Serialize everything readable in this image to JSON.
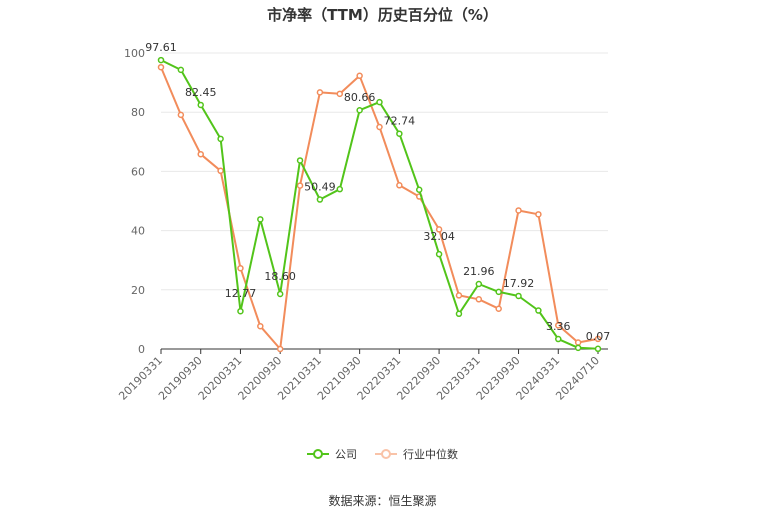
{
  "chart_data": {
    "type": "line",
    "title": "市净率（TTM）历史百分位（%）",
    "source": "数据来源：恒生聚源",
    "ylim": [
      0,
      100
    ],
    "yticks": [
      0,
      20,
      40,
      60,
      80,
      100
    ],
    "x_labels": [
      "20190331",
      "20190930",
      "20200331",
      "20200930",
      "20210331",
      "20210930",
      "20220331",
      "20220930",
      "20230331",
      "20230930",
      "20240331",
      "20240710"
    ],
    "grid": true,
    "legend_position": "bottom",
    "series": [
      {
        "name": "公司",
        "color": "#52c41a",
        "values": [
          97.61,
          94.3,
          82.45,
          71.0,
          12.77,
          43.8,
          18.6,
          63.7,
          50.49,
          54.0,
          80.66,
          83.4,
          72.74,
          53.8,
          32.04,
          11.9,
          21.96,
          19.3,
          17.92,
          13.0,
          3.36,
          0.4,
          0.07
        ],
        "point_labels": {
          "0": "97.61",
          "2": "82.45",
          "4": "12.77",
          "6": "18.60",
          "8": "50.49",
          "10": "80.66",
          "12": "72.74",
          "14": "32.04",
          "16": "21.96",
          "18": "17.92",
          "20": "3.36",
          "22": "0.07"
        }
      },
      {
        "name": "行业中位数",
        "color": "#f28c5b",
        "values": [
          95.2,
          79.1,
          65.8,
          60.2,
          27.3,
          7.7,
          0.0,
          55.2,
          86.7,
          86.2,
          92.3,
          75.0,
          55.3,
          51.5,
          40.4,
          18.1,
          16.8,
          13.6,
          46.8,
          45.5,
          8.0,
          2.2,
          3.4
        ]
      }
    ]
  },
  "legend": {
    "company": "公司",
    "industry": "行业中位数"
  }
}
